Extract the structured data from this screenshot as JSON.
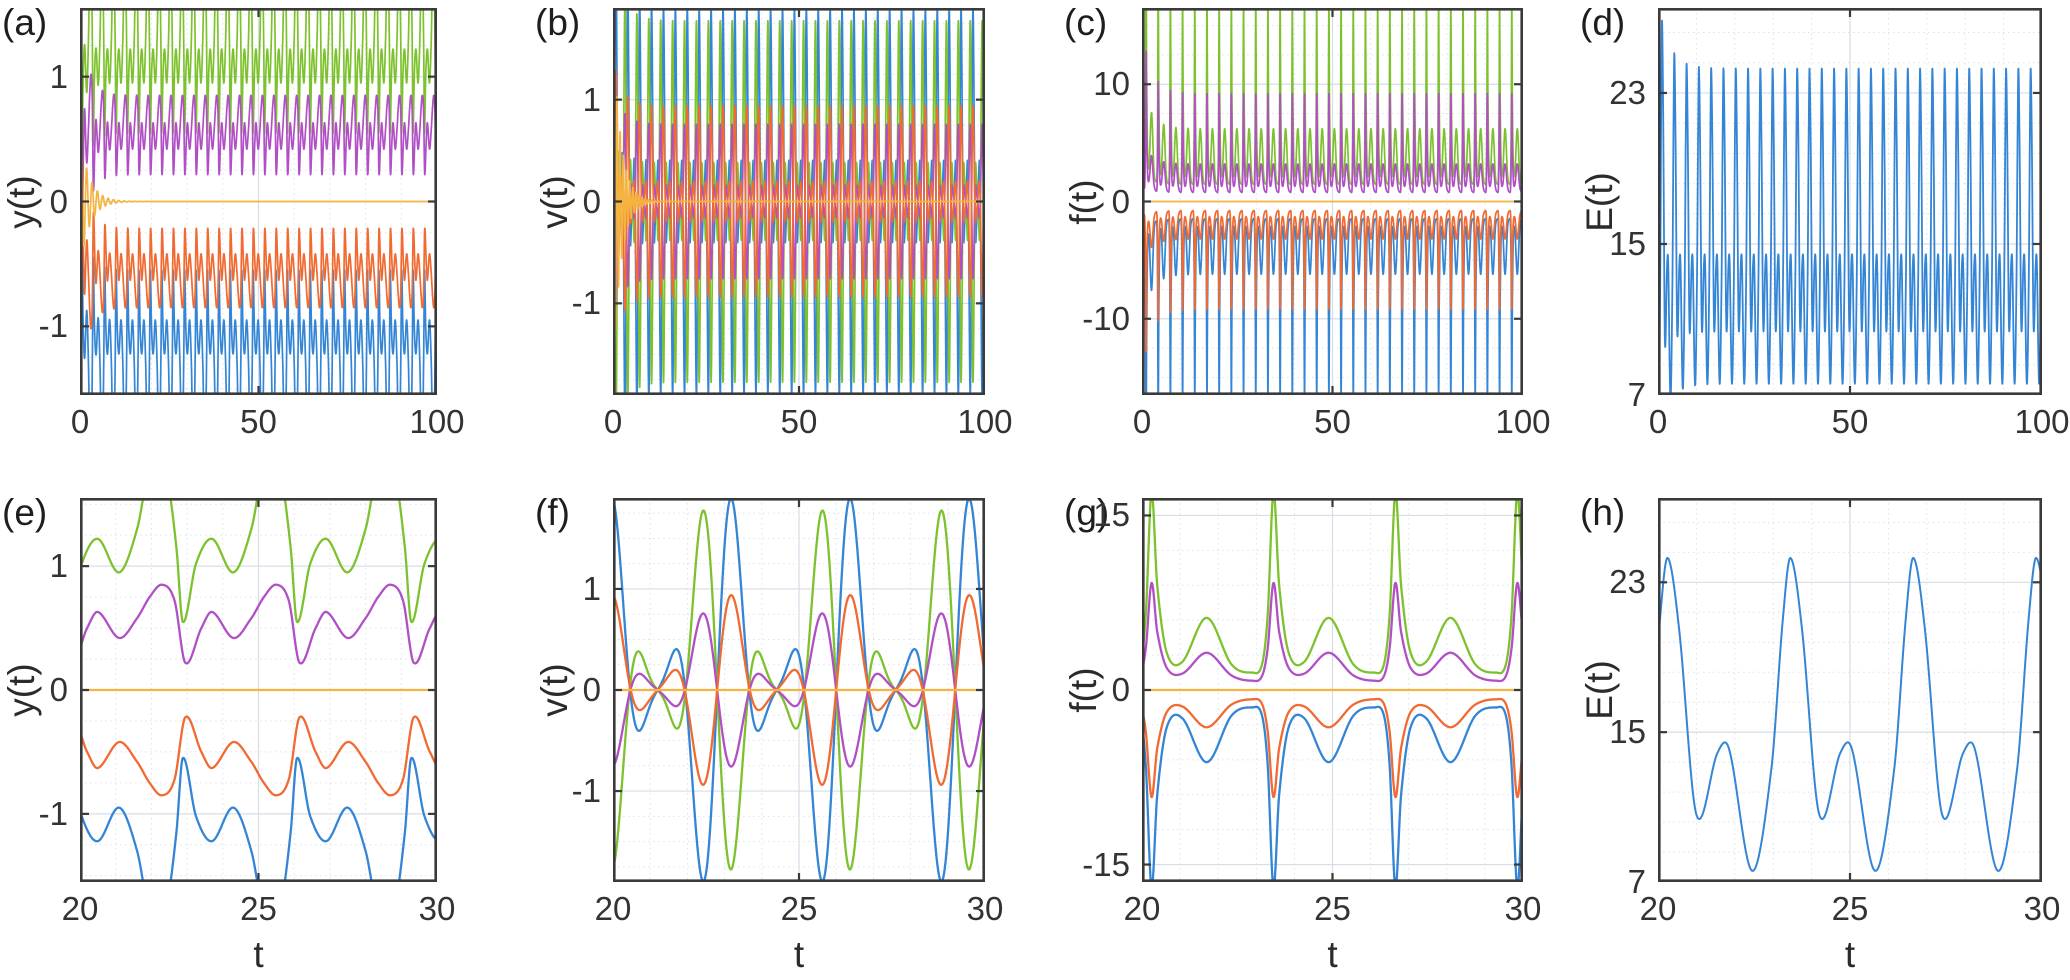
{
  "figure": {
    "background": "#ffffff",
    "frame_color": "#3a3a3a",
    "grid_major_color": "#d7dde6",
    "grid_minor_color": "#bfcde2",
    "text_color": "#333333"
  },
  "chart_data": {
    "type": "line",
    "description": "Eight-panel time-series figure: displacement y(t), velocity v(t), force f(t), energy E(t) of a symmetric oscillator chain; top row t=0..100, bottom row zoom t=20..30; five mirror-symmetric traces per y/v/f panel, single trace for E.",
    "colors": {
      "blue": "#3485D5",
      "orange": "#F06A32",
      "yellow": "#F5B43F",
      "purple": "#B14FC5",
      "green": "#7DC22E"
    },
    "models": {
      "y_green": {
        "type": "knots",
        "T": 3.2,
        "t0": 22.15,
        "center": 1.15,
        "knots": [
          [
            0,
            1.92
          ],
          [
            0.3,
            1.7
          ],
          [
            0.55,
            1.15
          ],
          [
            0.73,
            0.55
          ],
          [
            1.1,
            1.02
          ],
          [
            1.55,
            1.22
          ],
          [
            2.15,
            0.95
          ],
          [
            2.65,
            1.3
          ],
          [
            2.95,
            1.75
          ]
        ]
      },
      "y_purple": {
        "type": "knots",
        "T": 3.2,
        "t0": 22.3,
        "center": 0.54,
        "knots": [
          [
            0,
            0.85
          ],
          [
            0.35,
            0.72
          ],
          [
            0.65,
            0.22
          ],
          [
            1.1,
            0.5
          ],
          [
            1.4,
            0.63
          ],
          [
            2.0,
            0.42
          ],
          [
            2.5,
            0.58
          ],
          [
            2.85,
            0.75
          ]
        ]
      },
      "y_yellow": {
        "type": "damped",
        "A": 0.55,
        "tau": 2.6,
        "period": 1.5
      },
      "v_blue": {
        "type": "harmonic",
        "T": 3.2,
        "t0": 19.6,
        "center": 0,
        "sin": [
          0.66,
          1.12,
          0.42
        ]
      },
      "v_green": {
        "type": "harmonic",
        "T": 3.2,
        "t0": 19.6,
        "center": 0,
        "sin": [
          -0.6,
          -1.04,
          -0.42
        ]
      },
      "v_orange": {
        "type": "harmonic",
        "T": 3.2,
        "t0": 19.6,
        "center": 0,
        "sin": [
          0.34,
          0.56,
          0.19
        ]
      },
      "v_purple": {
        "type": "harmonic",
        "T": 3.2,
        "t0": 19.6,
        "center": 0,
        "sin": [
          -0.27,
          -0.45,
          -0.16
        ]
      },
      "v_yellow": {
        "type": "damped",
        "A": 1.7,
        "tau": 2.1,
        "period": 0.85
      },
      "f_green": {
        "type": "knots",
        "T": 3.2,
        "t0": 20.25,
        "center": 0,
        "knots": [
          [
            0,
            17
          ],
          [
            0.15,
            9
          ],
          [
            0.4,
            3.2
          ],
          [
            0.8,
            2.4
          ],
          [
            1.45,
            6.2
          ],
          [
            2.1,
            2.2
          ],
          [
            2.65,
            1.5
          ],
          [
            2.9,
            2.2
          ],
          [
            3.05,
            6.5
          ]
        ]
      },
      "f_purple": {
        "type": "knots",
        "T": 3.2,
        "t0": 20.25,
        "center": 0,
        "knots": [
          [
            0,
            9.2
          ],
          [
            0.15,
            5
          ],
          [
            0.4,
            1.9
          ],
          [
            0.8,
            1.4
          ],
          [
            1.45,
            3.2
          ],
          [
            2.1,
            1.25
          ],
          [
            2.65,
            0.8
          ],
          [
            2.9,
            1.2
          ],
          [
            3.05,
            3.6
          ]
        ]
      },
      "f_yellow": {
        "type": "const",
        "value": 0
      },
      "E": {
        "type": "knots",
        "T": 3.2,
        "t0": 20.25,
        "center": 14.6,
        "knots": [
          [
            0,
            24.3
          ],
          [
            0.3,
            20.5
          ],
          [
            0.75,
            10.6
          ],
          [
            1.3,
            13.9
          ],
          [
            1.6,
            14.1
          ],
          [
            2.2,
            7.6
          ],
          [
            2.7,
            13.0
          ],
          [
            3.0,
            21.0
          ]
        ]
      }
    },
    "panels": [
      {
        "id": "a",
        "label": "(a)",
        "ylabel": "y(t)",
        "xlabel": null,
        "xlim": [
          0,
          100
        ],
        "xticks": [
          0,
          50,
          100
        ],
        "xminor": 10,
        "ylim": [
          -1.55,
          1.55
        ],
        "yticks": [
          1,
          0,
          -1
        ],
        "yminor": 0.25,
        "lw": 1.7,
        "dt": 0.02,
        "transient": {
          "amp": 0.9,
          "tau": 2.2
        },
        "series": [
          {
            "model": "y_green",
            "color": "blue",
            "scale": -1,
            "tamp": 0.9
          },
          {
            "model": "y_green",
            "color": "green",
            "scale": 1,
            "tamp": 0.9
          },
          {
            "model": "y_purple",
            "color": "purple",
            "scale": 1,
            "tamp": 2.2
          },
          {
            "model": "y_purple",
            "color": "orange",
            "scale": -1,
            "tamp": 2.2
          },
          {
            "model": "y_yellow",
            "color": "yellow",
            "scale": 1
          }
        ]
      },
      {
        "id": "b",
        "label": "(b)",
        "ylabel": "v(t)",
        "xlabel": null,
        "xlim": [
          0,
          100
        ],
        "xticks": [
          0,
          50,
          100
        ],
        "xminor": 10,
        "ylim": [
          -1.9,
          1.9
        ],
        "yticks": [
          1,
          0,
          -1
        ],
        "yminor": 0.25,
        "lw": 1.7,
        "dt": 0.02,
        "transient": {
          "amp": 0.5,
          "tau": 2.5
        },
        "series": [
          {
            "model": "v_blue",
            "color": "blue",
            "scale": 1
          },
          {
            "model": "v_green",
            "color": "green",
            "scale": 1
          },
          {
            "model": "v_purple",
            "color": "purple",
            "scale": 1
          },
          {
            "model": "v_orange",
            "color": "orange",
            "scale": 1
          },
          {
            "model": "v_yellow",
            "color": "yellow",
            "scale": 1
          }
        ]
      },
      {
        "id": "c",
        "label": "(c)",
        "ylabel": "f(t)",
        "xlabel": null,
        "xlim": [
          0,
          100
        ],
        "xticks": [
          0,
          50,
          100
        ],
        "xminor": 10,
        "ylim": [
          -16.5,
          16.5
        ],
        "yticks": [
          10,
          0,
          -10
        ],
        "yminor": 2.5,
        "lw": 1.7,
        "dt": 0.02,
        "transient": {
          "amp": 0.6,
          "tau": 2.5
        },
        "series": [
          {
            "model": "f_green",
            "color": "blue",
            "scale": -1
          },
          {
            "model": "f_green",
            "color": "green",
            "scale": 1
          },
          {
            "model": "f_purple",
            "color": "purple",
            "scale": 1
          },
          {
            "model": "f_purple",
            "color": "orange",
            "scale": -1
          },
          {
            "model": "f_yellow",
            "color": "yellow",
            "scale": 1
          }
        ]
      },
      {
        "id": "d",
        "label": "(d)",
        "ylabel": "E(t)",
        "xlabel": null,
        "xlim": [
          0,
          100
        ],
        "xticks": [
          0,
          50,
          100
        ],
        "xminor": 10,
        "ylim": [
          7,
          27.5
        ],
        "yticks": [
          23,
          15,
          7
        ],
        "yminor": 1.6,
        "lw": 1.8,
        "dt": 0.02,
        "transient": {
          "amp": 0.38,
          "tau": 2.8
        },
        "series": [
          {
            "model": "E",
            "color": "blue",
            "scale": 1
          }
        ]
      },
      {
        "id": "e",
        "label": "(e)",
        "ylabel": "y(t)",
        "xlabel": "t",
        "xlim": [
          20,
          30
        ],
        "xticks": [
          20,
          25,
          30
        ],
        "xminor": 1,
        "ylim": [
          -1.55,
          1.55
        ],
        "yticks": [
          1,
          0,
          -1
        ],
        "yminor": 0.25,
        "lw": 2.3,
        "dt": 0.01,
        "transient": null,
        "series": [
          {
            "model": "y_green",
            "color": "blue",
            "scale": -1
          },
          {
            "model": "y_green",
            "color": "green",
            "scale": 1
          },
          {
            "model": "y_purple",
            "color": "purple",
            "scale": 1
          },
          {
            "model": "y_purple",
            "color": "orange",
            "scale": -1
          },
          {
            "model": "y_yellow",
            "color": "yellow",
            "scale": 1
          }
        ]
      },
      {
        "id": "f",
        "label": "(f)",
        "ylabel": "v(t)",
        "xlabel": "t",
        "xlim": [
          20,
          30
        ],
        "xticks": [
          20,
          25,
          30
        ],
        "xminor": 1,
        "ylim": [
          -1.9,
          1.9
        ],
        "yticks": [
          1,
          0,
          -1
        ],
        "yminor": 0.25,
        "lw": 2.3,
        "dt": 0.01,
        "transient": null,
        "series": [
          {
            "model": "v_blue",
            "color": "blue",
            "scale": 1
          },
          {
            "model": "v_green",
            "color": "green",
            "scale": 1
          },
          {
            "model": "v_purple",
            "color": "purple",
            "scale": 1
          },
          {
            "model": "v_orange",
            "color": "orange",
            "scale": 1
          },
          {
            "model": "v_yellow",
            "color": "yellow",
            "scale": 1
          }
        ]
      },
      {
        "id": "g",
        "label": "(g)",
        "ylabel": "f(t)",
        "xlabel": "t",
        "xlim": [
          20,
          30
        ],
        "xticks": [
          20,
          25,
          30
        ],
        "xminor": 1,
        "ylim": [
          -16.5,
          16.5
        ],
        "yticks": [
          15,
          0,
          -15
        ],
        "yminor": 3,
        "lw": 2.3,
        "dt": 0.01,
        "transient": null,
        "series": [
          {
            "model": "f_green",
            "color": "blue",
            "scale": -1
          },
          {
            "model": "f_green",
            "color": "green",
            "scale": 1
          },
          {
            "model": "f_purple",
            "color": "purple",
            "scale": 1
          },
          {
            "model": "f_purple",
            "color": "orange",
            "scale": -1
          },
          {
            "model": "f_yellow",
            "color": "yellow",
            "scale": 1
          }
        ]
      },
      {
        "id": "h",
        "label": "(h)",
        "ylabel": "E(t)",
        "xlabel": "t",
        "xlim": [
          20,
          30
        ],
        "xticks": [
          20,
          25,
          30
        ],
        "xminor": 1,
        "ylim": [
          7,
          27.5
        ],
        "yticks": [
          23,
          15,
          7
        ],
        "yminor": 1.6,
        "lw": 2.0,
        "dt": 0.01,
        "transient": null,
        "series": [
          {
            "model": "E",
            "color": "blue",
            "scale": 1
          }
        ]
      }
    ]
  }
}
